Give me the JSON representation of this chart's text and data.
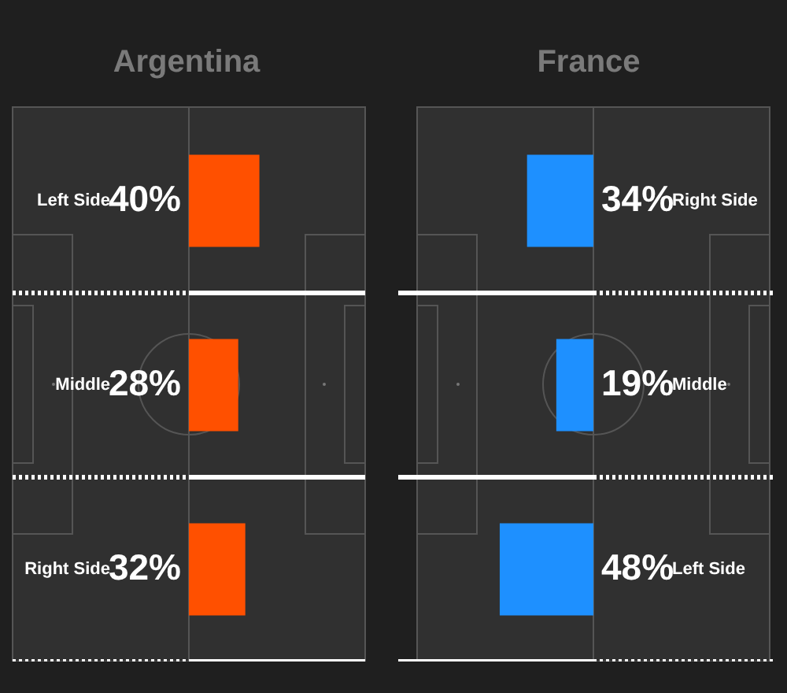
{
  "chart_data": [
    {
      "type": "bar",
      "orientation": "horizontal",
      "title": "Argentina",
      "categories": [
        "Left Side",
        "Middle",
        "Right Side"
      ],
      "values": [
        40,
        28,
        32
      ],
      "value_labels": [
        "40%",
        "28%",
        "32%"
      ],
      "color": "#ff5000",
      "tick_labels": "y",
      "grid": "y"
    },
    {
      "type": "bar",
      "orientation": "horizontal",
      "title": "France",
      "categories": [
        "Right Side",
        "Middle",
        "Left Side"
      ],
      "values": [
        34,
        19,
        48
      ],
      "value_labels": [
        "34%",
        "19%",
        "48%"
      ],
      "color": "#1e90ff",
      "tick_labels": "y",
      "grid": "y"
    }
  ]
}
